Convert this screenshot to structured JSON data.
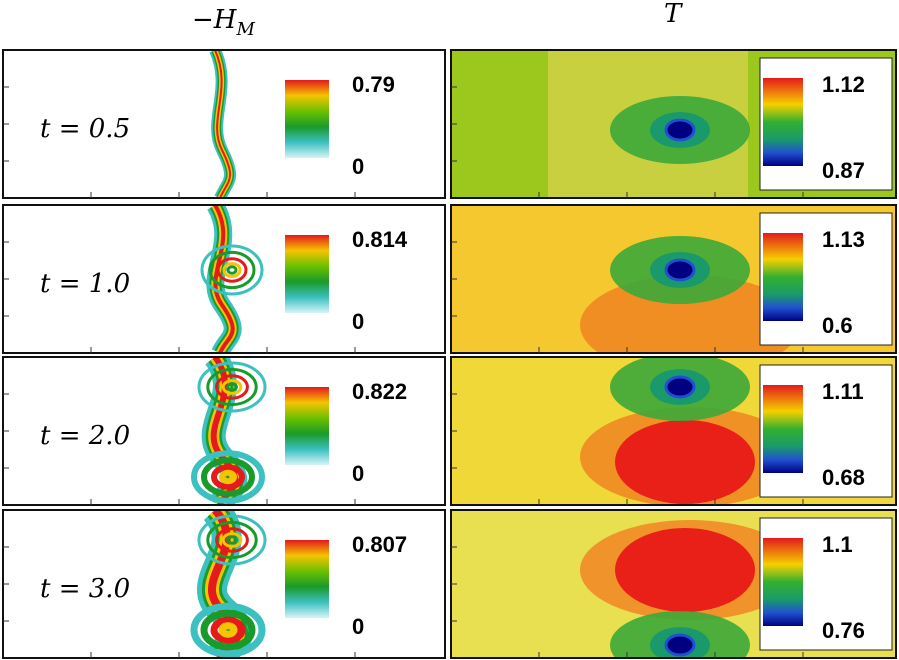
{
  "headers": {
    "left": {
      "symbol": "−H",
      "subscript": "M"
    },
    "right": {
      "symbol": "T"
    }
  },
  "rows": [
    {
      "label": "t = 0.5",
      "left_max": "0.79",
      "left_min": "0",
      "right_max": "1.12",
      "right_min": "0.87"
    },
    {
      "label": "t = 1.0",
      "left_max": "0.814",
      "left_min": "0",
      "right_max": "1.13",
      "right_min": "0.6"
    },
    {
      "label": "t = 2.0",
      "left_max": "0.822",
      "left_min": "0",
      "right_max": "1.11",
      "right_min": "0.68"
    },
    {
      "label": "t = 3.0",
      "left_max": "0.807",
      "left_min": "0",
      "right_max": "1.1",
      "right_min": "0.76"
    }
  ]
}
